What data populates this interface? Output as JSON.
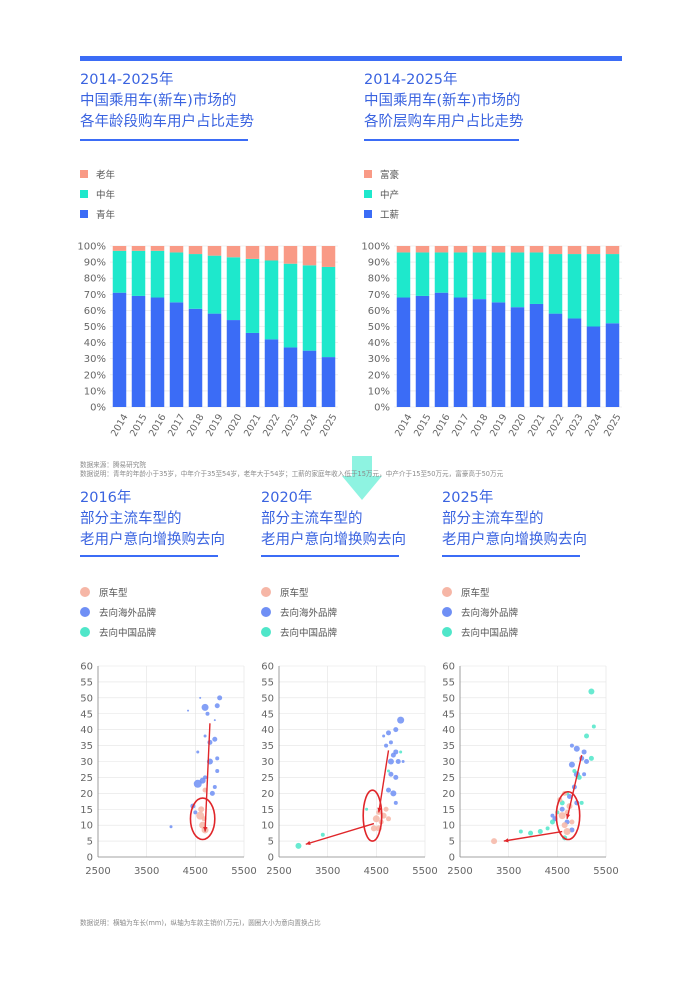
{
  "colors": {
    "young": "#3b6cf6",
    "middle": "#1ee8cc",
    "old": "#f99a86",
    "orig": "#f6b6a6",
    "overseas": "#6f8ff5",
    "domestic": "#4fe6c9",
    "trend": "#e0262a",
    "grid": "#e3e3e3",
    "axis": "#888888"
  },
  "notes": {
    "top_source": "数据来源：腾易研究院",
    "top_desc": "数据说明：青年的年龄小于35岁，中年介于35至54岁，老年大于54岁；工薪的家庭年收入低于15万元，中产介于15至50万元，富豪高于50万元",
    "bottom_desc": "数据说明：横轴为车长(mm)，纵轴为车款主销价(万元)，圆圈大小为意向置换占比"
  },
  "chart_data": [
    {
      "type": "bar",
      "stacked": true,
      "title_lines": [
        "2014-2025年",
        "中国乘用车(新车)市场的",
        "各年龄段购车用户占比走势"
      ],
      "categories": [
        "2014",
        "2015",
        "2016",
        "2017",
        "2018",
        "2019",
        "2020",
        "2021",
        "2022",
        "2023",
        "2024",
        "2025"
      ],
      "yticks": [
        "0%",
        "10%",
        "20%",
        "30%",
        "40%",
        "50%",
        "60%",
        "70%",
        "80%",
        "90%",
        "100%"
      ],
      "ylim": [
        0,
        100
      ],
      "series": [
        {
          "name": "青年",
          "values": [
            71,
            69,
            68,
            65,
            61,
            58,
            54,
            46,
            42,
            37,
            35,
            31
          ]
        },
        {
          "name": "中年",
          "values": [
            26,
            28,
            29,
            31,
            34,
            36,
            39,
            46,
            49,
            52,
            53,
            56
          ]
        },
        {
          "name": "老年",
          "values": [
            3,
            3,
            3,
            4,
            5,
            6,
            7,
            8,
            9,
            11,
            12,
            13
          ]
        }
      ],
      "legend": [
        "老年",
        "中年",
        "青年"
      ]
    },
    {
      "type": "bar",
      "stacked": true,
      "title_lines": [
        "2014-2025年",
        "中国乘用车(新车)市场的",
        "各阶层购车用户占比走势"
      ],
      "categories": [
        "2014",
        "2015",
        "2016",
        "2017",
        "2018",
        "2019",
        "2020",
        "2021",
        "2022",
        "2023",
        "2024",
        "2025"
      ],
      "yticks": [
        "0%",
        "10%",
        "20%",
        "30%",
        "40%",
        "50%",
        "60%",
        "70%",
        "80%",
        "90%",
        "100%"
      ],
      "ylim": [
        0,
        100
      ],
      "series": [
        {
          "name": "工薪",
          "values": [
            68,
            69,
            71,
            68,
            67,
            65,
            62,
            64,
            58,
            55,
            50,
            52
          ]
        },
        {
          "name": "中产",
          "values": [
            28,
            27,
            25,
            28,
            29,
            31,
            34,
            32,
            37,
            40,
            45,
            43
          ]
        },
        {
          "name": "富豪",
          "values": [
            4,
            4,
            4,
            4,
            4,
            4,
            4,
            4,
            5,
            5,
            5,
            5
          ]
        }
      ],
      "legend": [
        "富豪",
        "中产",
        "工薪"
      ]
    },
    {
      "type": "scatter",
      "title_lines": [
        "2016年",
        "部分主流车型的",
        "老用户意向增换购去向"
      ],
      "legend": [
        "原车型",
        "去向海外品牌",
        "去向中国品牌"
      ],
      "xlim": [
        2500,
        5500
      ],
      "ylim": [
        0,
        60
      ],
      "xticks": [
        "2500",
        "3500",
        "4500",
        "5500"
      ],
      "yticks": [
        "0",
        "5",
        "10",
        "15",
        "20",
        "25",
        "30",
        "35",
        "40",
        "45",
        "50",
        "55",
        "60"
      ],
      "series": [
        {
          "name": "原车型",
          "points": [
            [
              4600,
              13,
              8
            ],
            [
              4650,
              10,
              7
            ],
            [
              4700,
              8.5,
              7
            ],
            [
              4620,
              15,
              6
            ],
            [
              4680,
              12,
              5
            ],
            [
              4700,
              21,
              5
            ]
          ]
        },
        {
          "name": "去向海外品牌",
          "points": [
            [
              4700,
              47,
              7
            ],
            [
              5000,
              50,
              5
            ],
            [
              4950,
              47.5,
              5
            ],
            [
              4750,
              45,
              4
            ],
            [
              4900,
              37,
              5
            ],
            [
              4800,
              36,
              5
            ],
            [
              4950,
              31,
              4
            ],
            [
              4800,
              30,
              6
            ],
            [
              4650,
              24,
              6
            ],
            [
              4700,
              25,
              4
            ],
            [
              4550,
              23,
              8
            ],
            [
              4950,
              27,
              4
            ],
            [
              4850,
              20,
              5
            ],
            [
              4450,
              16,
              5
            ],
            [
              4500,
              14,
              4
            ],
            [
              4900,
              22,
              4
            ],
            [
              4000,
              9.5,
              3
            ],
            [
              4550,
              33,
              3
            ],
            [
              4600,
              50,
              2
            ],
            [
              4900,
              43,
              2
            ],
            [
              4350,
              46,
              2
            ],
            [
              4700,
              38,
              3
            ]
          ]
        },
        {
          "name": "去向中国品牌",
          "points": []
        }
      ],
      "trend_lines": [
        [
          [
            4700,
            8
          ],
          [
            4800,
            42
          ]
        ]
      ],
      "ellipses": [
        [
          4650,
          12,
          250,
          6.5
        ]
      ]
    },
    {
      "type": "scatter",
      "title_lines": [
        "2020年",
        "部分主流车型的",
        "老用户意向增换购去向"
      ],
      "legend": [
        "原车型",
        "去向海外品牌",
        "去向中国品牌"
      ],
      "xlim": [
        2500,
        5500
      ],
      "ylim": [
        0,
        60
      ],
      "xticks": [
        "2500",
        "3500",
        "4500",
        "5500"
      ],
      "yticks": [
        "0",
        "5",
        "10",
        "15",
        "20",
        "25",
        "30",
        "35",
        "40",
        "45",
        "50",
        "55",
        "60"
      ],
      "series": [
        {
          "name": "原车型",
          "points": [
            [
              4500,
              12,
              7
            ],
            [
              4550,
              9,
              6
            ],
            [
              4650,
              13,
              6
            ],
            [
              4450,
              9,
              6
            ],
            [
              4600,
              11,
              5
            ],
            [
              4700,
              15,
              5
            ],
            [
              4550,
              14,
              5
            ],
            [
              4750,
              12,
              5
            ]
          ]
        },
        {
          "name": "去向海外品牌",
          "points": [
            [
              5000,
              43,
              7
            ],
            [
              4900,
              40,
              5
            ],
            [
              4750,
              39,
              5
            ],
            [
              4800,
              36,
              4
            ],
            [
              4700,
              35,
              4
            ],
            [
              4900,
              33,
              5
            ],
            [
              4850,
              32,
              5
            ],
            [
              4800,
              30,
              6
            ],
            [
              4950,
              30,
              5
            ],
            [
              4800,
              26,
              5
            ],
            [
              4900,
              25,
              5
            ],
            [
              4750,
              21,
              5
            ],
            [
              4850,
              20,
              6
            ],
            [
              4900,
              17,
              4
            ],
            [
              5050,
              30,
              3
            ],
            [
              4650,
              38,
              3
            ]
          ]
        },
        {
          "name": "去向中国品牌",
          "points": [
            [
              2900,
              3.5,
              6
            ],
            [
              3400,
              7,
              4
            ],
            [
              4300,
              15,
              3
            ],
            [
              4750,
              27,
              3
            ],
            [
              5000,
              33,
              3
            ]
          ]
        }
      ],
      "trend_lines": [
        [
          [
            3050,
            4
          ],
          [
            4450,
            10.5
          ]
        ],
        [
          [
            4550,
            14
          ],
          [
            4750,
            33.5
          ]
        ]
      ],
      "ellipses": [
        [
          4420,
          13,
          190,
          8
        ]
      ]
    },
    {
      "type": "scatter",
      "title_lines": [
        "2025年",
        "部分主流车型的",
        "老用户意向增换购去向"
      ],
      "legend": [
        "原车型",
        "去向海外品牌",
        "去向中国品牌"
      ],
      "xlim": [
        2500,
        5500
      ],
      "ylim": [
        0,
        60
      ],
      "xticks": [
        "2500",
        "3500",
        "4500",
        "5500"
      ],
      "yticks": [
        "0",
        "5",
        "10",
        "15",
        "20",
        "25",
        "30",
        "35",
        "40",
        "45",
        "50",
        "55",
        "60"
      ],
      "series": [
        {
          "name": "原车型",
          "points": [
            [
              3200,
              5,
              6
            ],
            [
              4600,
              13,
              7
            ],
            [
              4650,
              10,
              6
            ],
            [
              4700,
              8,
              7
            ],
            [
              4550,
              18,
              5
            ],
            [
              4750,
              16,
              6
            ],
            [
              4650,
              20,
              5
            ],
            [
              4800,
              11,
              5
            ],
            [
              4700,
              14,
              5
            ]
          ]
        },
        {
          "name": "去向海外品牌",
          "points": [
            [
              4900,
              34,
              6
            ],
            [
              5050,
              33,
              5
            ],
            [
              4800,
              29,
              6
            ],
            [
              5000,
              31,
              5
            ],
            [
              5100,
              30,
              5
            ],
            [
              4900,
              26,
              6
            ],
            [
              5050,
              26,
              4
            ],
            [
              4850,
              22,
              5
            ],
            [
              4750,
              19,
              5
            ],
            [
              4900,
              17,
              5
            ],
            [
              4600,
              15,
              5
            ],
            [
              4450,
              12,
              5
            ],
            [
              4700,
              11,
              5
            ],
            [
              4800,
              8.5,
              5
            ],
            [
              4400,
              13,
              4
            ],
            [
              4800,
              35,
              4
            ]
          ]
        },
        {
          "name": "去向中国品牌",
          "points": [
            [
              5200,
              52,
              6
            ],
            [
              5250,
              41,
              4
            ],
            [
              5100,
              38,
              5
            ],
            [
              5200,
              31,
              5
            ],
            [
              4950,
              25,
              5
            ],
            [
              4700,
              20,
              4
            ],
            [
              4600,
              17,
              5
            ],
            [
              4500,
              14,
              4
            ],
            [
              4400,
              11,
              5
            ],
            [
              4300,
              9,
              4
            ],
            [
              4150,
              8,
              5
            ],
            [
              3950,
              7.5,
              5
            ],
            [
              3750,
              8,
              4
            ],
            [
              4650,
              6,
              5
            ],
            [
              5000,
              17,
              4
            ],
            [
              4850,
              27,
              4
            ]
          ]
        }
      ],
      "trend_lines": [
        [
          [
            3400,
            5
          ],
          [
            4600,
            8
          ]
        ],
        [
          [
            4700,
            12
          ],
          [
            5000,
            32
          ]
        ]
      ],
      "ellipses": [
        [
          4720,
          13,
          240,
          7.5
        ]
      ]
    }
  ]
}
